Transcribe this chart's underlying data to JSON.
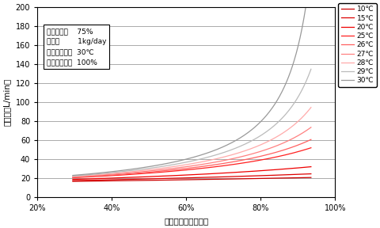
{
  "xlabel": "入口空気湿度（－）",
  "ylabel": "通気量（L/min）",
  "xlim": [
    0.2,
    1.0
  ],
  "ylim": [
    0,
    200
  ],
  "yticks": [
    0,
    20,
    40,
    60,
    80,
    100,
    120,
    140,
    160,
    180,
    200
  ],
  "xtick_positions": [
    0.2,
    0.4,
    0.6,
    0.8,
    1.0
  ],
  "outlet_temp": 30,
  "outlet_rh": 1.0,
  "moisture_content": 0.75,
  "input_amount_kg_day": 1.0,
  "temperatures": [
    10,
    15,
    20,
    25,
    26,
    27,
    28,
    29,
    30
  ],
  "legend_labels": [
    "10℃",
    "15℃",
    "20℃",
    "25℃",
    "26℃",
    "27℃",
    "28℃",
    "29℃",
    "30℃"
  ],
  "annotation_lines": [
    "屑外含水量    75%",
    "投入量        1kg/day",
    "出口空気温度  30℃",
    "出口空気湿度  100%"
  ],
  "line_colors": {
    "10": "#cc0000",
    "15": "#dd0000",
    "20": "#ee0000",
    "25": "#ff2020",
    "26": "#ff6060",
    "27": "#ff8080",
    "28": "#ffaaaa",
    "29": "#bbbbbb",
    "30": "#999999"
  },
  "line_styles": {
    "10": "-",
    "15": "-",
    "20": "-",
    "25": "-",
    "26": "-",
    "27": "-",
    "28": "-",
    "29": "-",
    "30": "-"
  },
  "legend_colors": {
    "10": "#cc0000",
    "15": "#dd0000",
    "20": "#ee0000",
    "25": "#ff2020",
    "26": "#ff6060",
    "27": "#ff8080",
    "28": "#ffaaaa",
    "29": "#bbbbbb",
    "30": "#999999"
  }
}
